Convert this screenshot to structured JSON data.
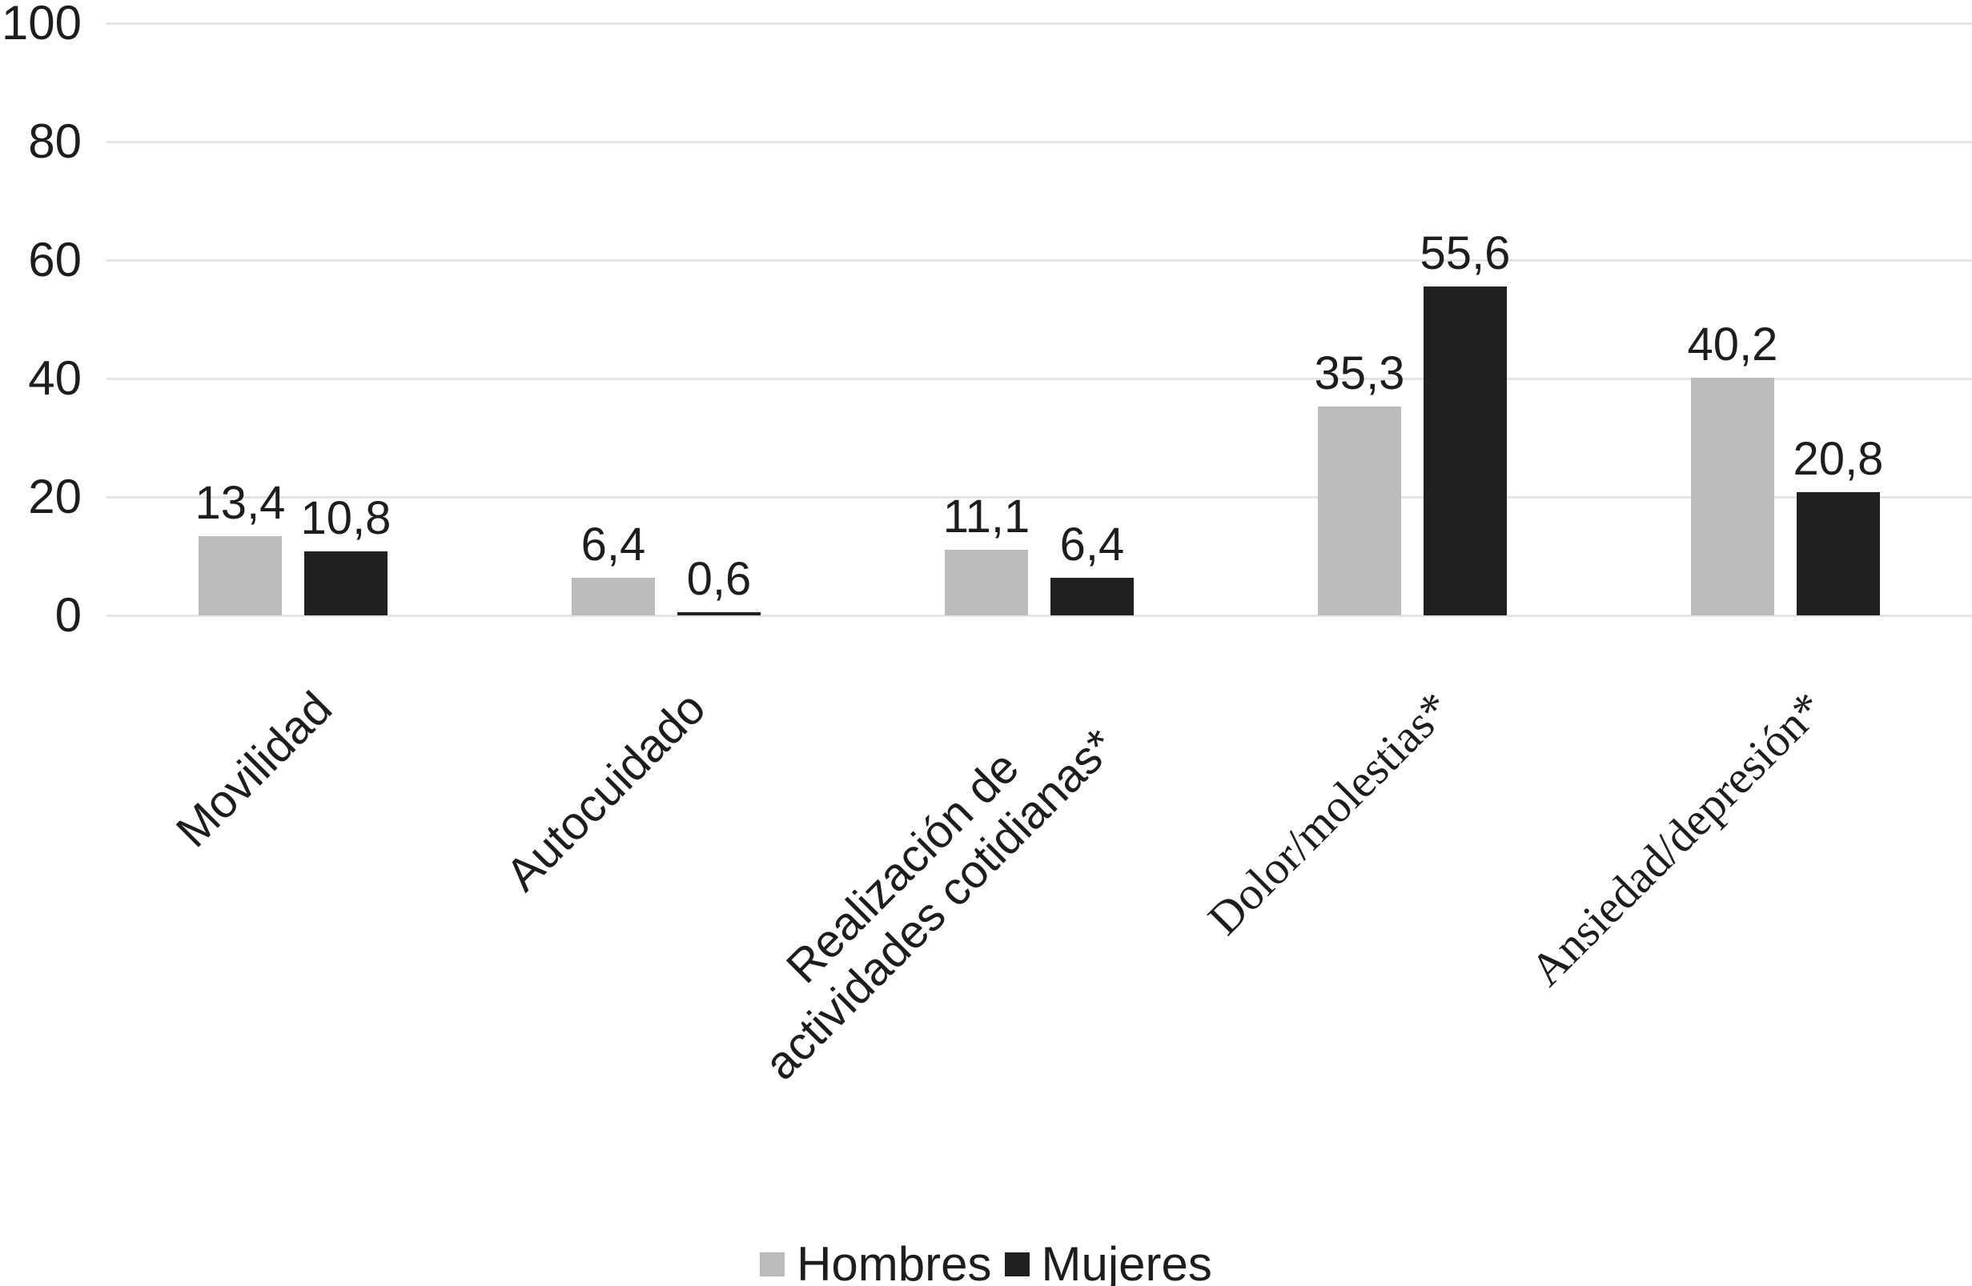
{
  "chart_data": {
    "type": "bar",
    "title": "",
    "xlabel": "",
    "ylabel": "",
    "ylim": [
      0,
      100
    ],
    "yticks": [
      0,
      20,
      40,
      60,
      80,
      100
    ],
    "ytick_labels": [
      "0",
      "20",
      "40",
      "60",
      "80",
      "100"
    ],
    "grid": true,
    "legend_position": "bottom",
    "decimal_separator": ",",
    "background_color": "#ffffff",
    "gridline_color": "#e4e4e4",
    "text_color": "#1d1d1d",
    "categories": [
      {
        "label": "Movilidad",
        "lines": [
          "Movilidad"
        ],
        "serif": false
      },
      {
        "label": "Autocuidado",
        "lines": [
          "Autocuidado"
        ],
        "serif": false
      },
      {
        "label": "Realización de actividades cotidianas*",
        "lines": [
          "Realización de",
          "actividades cotidianas*"
        ],
        "serif": false
      },
      {
        "label": "Dolor/molestias*",
        "lines": [
          "Dolor/molestias*"
        ],
        "serif": true
      },
      {
        "label": "Ansiedad/depresión*",
        "lines": [
          "Ansiedad/depresión*"
        ],
        "serif": true
      }
    ],
    "series": [
      {
        "name": "Hombres",
        "color": "#babcbe",
        "values": [
          13.4,
          6.4,
          11.1,
          35.3,
          40.2
        ],
        "value_labels": [
          "13,4",
          "6,4",
          "11,1",
          "35,3",
          "40,2"
        ]
      },
      {
        "name": "Mujeres",
        "color": "#221f20",
        "values": [
          10.8,
          0.6,
          6.4,
          55.6,
          20.8
        ],
        "value_labels": [
          "10,8",
          "0,6",
          "6,4",
          "55,6",
          "20,8"
        ]
      }
    ]
  },
  "legend": {
    "items": [
      {
        "label": "Hombres",
        "color": "#babcbe"
      },
      {
        "label": "Mujeres",
        "color": "#221f20"
      }
    ]
  }
}
